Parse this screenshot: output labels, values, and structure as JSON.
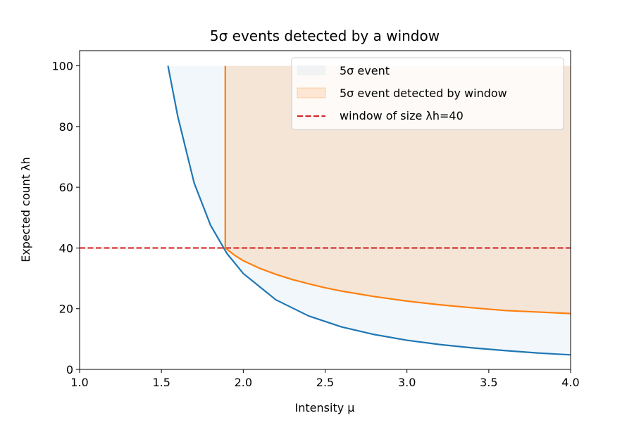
{
  "chart_data": {
    "type": "area",
    "title": "5σ events detected by a window",
    "xlabel": "Intensity μ",
    "ylabel": "Expected count λh",
    "xlim": [
      1.0,
      4.0
    ],
    "ylim": [
      0,
      105
    ],
    "xticks": [
      "1.0",
      "1.5",
      "2.0",
      "2.5",
      "3.0",
      "3.5",
      "4.0"
    ],
    "yticks": [
      "0",
      "20",
      "40",
      "60",
      "80",
      "100"
    ],
    "grid": false,
    "legend_position": "upper right",
    "legend": [
      {
        "label": "5σ event",
        "kind": "fill",
        "color": "#1f77b4"
      },
      {
        "label": "5σ event detected by window",
        "kind": "fill",
        "color": "#ff7f0e"
      },
      {
        "label": "window of size λh=40",
        "kind": "dashed-line",
        "color": "#d62728"
      }
    ],
    "series": [
      {
        "name": "5σ event",
        "color": "#1f77b4",
        "x": [
          1.54,
          1.6,
          1.7,
          1.8,
          1.9,
          2.0,
          2.2,
          2.4,
          2.6,
          2.8,
          3.0,
          3.2,
          3.4,
          3.6,
          3.8,
          4.0
        ],
        "y": [
          100,
          83.3,
          61.4,
          47.5,
          38.2,
          31.6,
          22.9,
          17.6,
          14.0,
          11.5,
          9.6,
          8.2,
          7.1,
          6.2,
          5.4,
          4.8
        ],
        "fill_to": 100
      },
      {
        "name": "5σ event detected by window",
        "color": "#ff7f0e",
        "x": [
          1.89,
          1.95,
          2.0,
          2.1,
          2.2,
          2.3,
          2.4,
          2.5,
          2.6,
          2.8,
          3.0,
          3.2,
          3.4,
          3.6,
          3.8,
          4.0
        ],
        "y": [
          40,
          37.5,
          35.8,
          33.3,
          31.3,
          29.6,
          28.2,
          26.9,
          25.8,
          24.0,
          22.5,
          21.3,
          20.3,
          19.4,
          18.9,
          18.4
        ],
        "vertical_x": 1.89,
        "fill_to": 100
      },
      {
        "name": "window of size λh=40",
        "color": "#d62728",
        "style": "dashed",
        "x": [
          1.0,
          4.0
        ],
        "y": [
          40,
          40
        ]
      }
    ]
  }
}
